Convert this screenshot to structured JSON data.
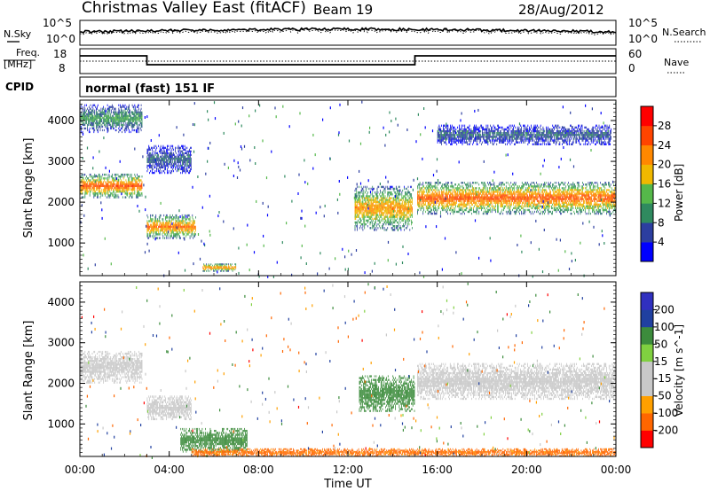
{
  "header": {
    "station": "Christmas Valley East (fitACF)",
    "beam": "Beam 19",
    "date": "28/Aug/2012"
  },
  "panel_labels": {
    "nsky": "N.Sky",
    "nsearch": "N.Search",
    "freq_line1": "Freq.",
    "freq_line2": "[MHz]",
    "nave": "Nave",
    "cpid": "CPID",
    "cpid_value": "normal (fast) 151 IF"
  },
  "noise_axis": {
    "left_ticks": [
      "10^5",
      "10^0"
    ],
    "right_ticks": [
      "10^5",
      "10^0"
    ]
  },
  "freq_axis": {
    "left_ticks": [
      "18",
      "8"
    ],
    "right_ticks": [
      "60",
      "0"
    ]
  },
  "colors": {
    "power_scale": [
      "#0000ff",
      "#2c3ea0",
      "#2f8a5f",
      "#55b84a",
      "#f0b800",
      "#ff8800",
      "#ff4400",
      "#ff0000"
    ],
    "velocity_scale": [
      "#ff0000",
      "#ff6600",
      "#ffa000",
      "#c8c8c8",
      "#c8c8c8",
      "#80d040",
      "#3c8c3c",
      "#2040a0",
      "#3030c0"
    ],
    "ground_scatter": "#c8c8c8"
  },
  "chart_data": [
    {
      "type": "heatmap",
      "name": "power",
      "xlabel": "",
      "ylabel": "Slant Range [km]",
      "xlim": [
        "00:00",
        "24:00"
      ],
      "ylim": [
        200,
        4500
      ],
      "y_ticks": [
        1000,
        2000,
        3000,
        4000
      ],
      "colorbar": {
        "label": "Power [dB]",
        "ticks": [
          4,
          8,
          12,
          16,
          20,
          24,
          28
        ],
        "range": [
          0,
          32
        ]
      },
      "features": [
        {
          "t0": 0.0,
          "t1": 2.8,
          "r0": 2100,
          "r1": 2700,
          "peak_db": 26
        },
        {
          "t0": 0.0,
          "t1": 2.8,
          "r0": 3700,
          "r1": 4400,
          "peak_db": 12
        },
        {
          "t0": 3.0,
          "t1": 5.2,
          "r0": 1100,
          "r1": 1700,
          "peak_db": 24
        },
        {
          "t0": 3.0,
          "t1": 5.0,
          "r0": 2700,
          "r1": 3400,
          "peak_db": 8
        },
        {
          "t0": 5.5,
          "t1": 7.0,
          "r0": 300,
          "r1": 500,
          "peak_db": 24
        },
        {
          "t0": 12.3,
          "t1": 14.9,
          "r0": 1300,
          "r1": 2400,
          "peak_db": 22
        },
        {
          "t0": 15.1,
          "t1": 24.0,
          "r0": 1700,
          "r1": 2500,
          "peak_db": 26
        },
        {
          "t0": 16.0,
          "t1": 23.8,
          "r0": 3400,
          "r1": 3900,
          "peak_db": 8
        }
      ]
    },
    {
      "type": "heatmap",
      "name": "velocity",
      "xlabel": "Time UT",
      "ylabel": "Slant Range [km]",
      "xlim": [
        "00:00",
        "24:00"
      ],
      "ylim": [
        200,
        4500
      ],
      "x_ticks": [
        "00:00",
        "04:00",
        "08:00",
        "12:00",
        "16:00",
        "20:00",
        "00:00"
      ],
      "y_ticks": [
        1000,
        2000,
        3000,
        4000
      ],
      "colorbar": {
        "label": "Velocity [m s^-1]",
        "ticks": [
          200,
          100,
          50,
          15,
          -15,
          -50,
          -100,
          -200
        ]
      },
      "features": [
        {
          "t0": 0.0,
          "t1": 2.8,
          "r0": 2000,
          "r1": 2800,
          "velocity": 0
        },
        {
          "t0": 3.0,
          "t1": 5.0,
          "r0": 1100,
          "r1": 1700,
          "velocity": 0
        },
        {
          "t0": 4.5,
          "t1": 7.5,
          "r0": 300,
          "r1": 900,
          "velocity": 60
        },
        {
          "t0": 12.5,
          "t1": 15.0,
          "r0": 1300,
          "r1": 2200,
          "velocity": 60
        },
        {
          "t0": 15.1,
          "t1": 24.0,
          "r0": 1600,
          "r1": 2500,
          "velocity": 0
        },
        {
          "t0": 5.0,
          "t1": 24.0,
          "r0": 200,
          "r1": 400,
          "velocity": -60
        }
      ]
    }
  ]
}
